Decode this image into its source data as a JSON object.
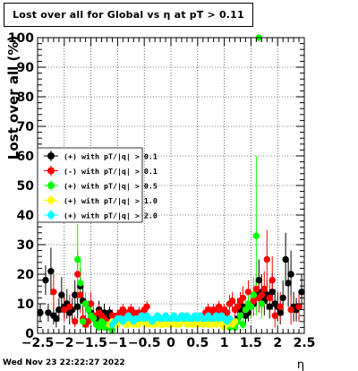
{
  "header": {
    "title": "Lost over all for Global vs  η at pT > 0.11"
  },
  "footer": {
    "timestamp": "Wed Nov 23 22:22:27 2022"
  },
  "chart_data": {
    "type": "scatter",
    "title": "Lost over all for Global vs  η at pT > 0.11",
    "xlabel": "η",
    "ylabel": "Lost over all (%)",
    "xlim": [
      -2.5,
      2.5
    ],
    "ylim": [
      0,
      100
    ],
    "x_ticks": [
      "−2.5",
      "−2",
      "−1.5",
      "−1",
      "−0.5",
      "0",
      "0.5",
      "1",
      "1.5",
      "2",
      "2.5"
    ],
    "y_ticks": [
      "0",
      "10",
      "20",
      "30",
      "40",
      "50",
      "60",
      "70",
      "80",
      "90",
      "100"
    ],
    "grid": true,
    "legend_position": "left",
    "series": [
      {
        "name": "(+) with pT/|q| > 0.1",
        "color": "#000000",
        "points": [
          [
            -2.45,
            7,
            3
          ],
          [
            -2.35,
            18,
            5
          ],
          [
            -2.3,
            7,
            3
          ],
          [
            -2.25,
            21,
            8
          ],
          [
            -2.2,
            6,
            3
          ],
          [
            -2.15,
            5,
            3
          ],
          [
            -2.1,
            8,
            4
          ],
          [
            -2.05,
            13,
            6
          ],
          [
            -2.0,
            9,
            4
          ],
          [
            -1.95,
            10,
            5
          ],
          [
            -1.9,
            7,
            4
          ],
          [
            -1.85,
            8,
            4
          ],
          [
            -1.8,
            13,
            5
          ],
          [
            -1.75,
            9,
            4
          ],
          [
            -1.7,
            16,
            6
          ],
          [
            -1.65,
            11,
            5
          ],
          [
            -1.6,
            4,
            2
          ],
          [
            -1.55,
            8,
            3
          ],
          [
            -1.5,
            7,
            3
          ],
          [
            -1.45,
            6,
            2
          ],
          [
            -1.4,
            5,
            2
          ],
          [
            -1.35,
            8,
            3
          ],
          [
            -1.3,
            6,
            2
          ],
          [
            -1.25,
            7,
            3
          ],
          [
            -1.2,
            5,
            2
          ],
          [
            -1.15,
            7,
            2
          ],
          [
            -1.1,
            6,
            2
          ],
          [
            1.25,
            5,
            2
          ],
          [
            1.3,
            8,
            3
          ],
          [
            1.35,
            9,
            3
          ],
          [
            1.4,
            6,
            3
          ],
          [
            1.45,
            7,
            3
          ],
          [
            1.5,
            9,
            4
          ],
          [
            1.55,
            10,
            4
          ],
          [
            1.6,
            13,
            5
          ],
          [
            1.65,
            18,
            7
          ],
          [
            1.7,
            14,
            6
          ],
          [
            1.75,
            11,
            5
          ],
          [
            1.8,
            13,
            5
          ],
          [
            1.85,
            9,
            4
          ],
          [
            1.9,
            14,
            6
          ],
          [
            1.95,
            10,
            5
          ],
          [
            2.0,
            9,
            5
          ],
          [
            2.05,
            7,
            4
          ],
          [
            2.1,
            12,
            6
          ],
          [
            2.15,
            25,
            9
          ],
          [
            2.2,
            17,
            8
          ],
          [
            2.25,
            20,
            8
          ],
          [
            2.3,
            9,
            5
          ],
          [
            2.35,
            8,
            4
          ],
          [
            2.4,
            9,
            5
          ],
          [
            2.45,
            14,
            6
          ]
        ]
      },
      {
        "name": "(-) with pT/|q| > 0.1",
        "color": "#ff0000",
        "points": [
          [
            -2.2,
            14,
            6
          ],
          [
            -2.0,
            8,
            4
          ],
          [
            -1.9,
            9,
            4
          ],
          [
            -1.8,
            4,
            2
          ],
          [
            -1.75,
            20,
            8
          ],
          [
            -1.7,
            13,
            6
          ],
          [
            -1.65,
            5,
            3
          ],
          [
            -1.6,
            3,
            2
          ],
          [
            -1.55,
            4,
            2
          ],
          [
            -1.5,
            10,
            4
          ],
          [
            -1.45,
            6,
            3
          ],
          [
            -1.4,
            3,
            2
          ],
          [
            -1.35,
            7,
            3
          ],
          [
            -1.3,
            6,
            3
          ],
          [
            -1.25,
            5,
            2
          ],
          [
            -1.2,
            4,
            2
          ],
          [
            -1.1,
            6,
            2
          ],
          [
            -1.05,
            5,
            2
          ],
          [
            -1.0,
            6,
            2
          ],
          [
            -0.95,
            7,
            2
          ],
          [
            -0.9,
            8,
            2
          ],
          [
            -0.85,
            6,
            2
          ],
          [
            -0.8,
            7,
            2
          ],
          [
            -0.75,
            8,
            2
          ],
          [
            -0.7,
            7,
            2
          ],
          [
            -0.65,
            6,
            2
          ],
          [
            -0.6,
            7,
            2
          ],
          [
            -0.5,
            8,
            2
          ],
          [
            -0.45,
            9,
            2
          ],
          [
            0.65,
            7,
            2
          ],
          [
            0.7,
            8,
            2
          ],
          [
            0.75,
            7,
            2
          ],
          [
            0.8,
            8,
            2
          ],
          [
            0.85,
            7,
            2
          ],
          [
            0.9,
            9,
            2
          ],
          [
            0.95,
            7,
            2
          ],
          [
            1.0,
            8,
            2
          ],
          [
            1.05,
            7,
            2
          ],
          [
            1.1,
            10,
            3
          ],
          [
            1.15,
            11,
            3
          ],
          [
            1.2,
            8,
            3
          ],
          [
            1.25,
            9,
            3
          ],
          [
            1.3,
            11,
            3
          ],
          [
            1.35,
            12,
            4
          ],
          [
            1.4,
            8,
            3
          ],
          [
            1.45,
            14,
            4
          ],
          [
            1.5,
            10,
            4
          ],
          [
            1.55,
            11,
            5
          ],
          [
            1.6,
            15,
            5
          ],
          [
            1.65,
            12,
            5
          ],
          [
            1.7,
            13,
            6
          ],
          [
            1.75,
            15,
            6
          ],
          [
            1.8,
            25,
            10
          ],
          [
            1.85,
            12,
            6
          ],
          [
            1.9,
            18,
            8
          ],
          [
            1.95,
            6,
            4
          ],
          [
            2.05,
            9,
            5
          ],
          [
            2.25,
            8,
            5
          ],
          [
            2.4,
            9,
            5
          ]
        ]
      },
      {
        "name": "(+) with pT/|q| > 0.5",
        "color": "#00ff00",
        "points": [
          [
            -1.75,
            25,
            12
          ],
          [
            -1.7,
            17,
            8
          ],
          [
            -1.65,
            4,
            2
          ],
          [
            -1.6,
            10,
            4
          ],
          [
            -1.55,
            8,
            3
          ],
          [
            -1.5,
            6,
            3
          ],
          [
            -1.45,
            5,
            2
          ],
          [
            -1.4,
            3,
            2
          ],
          [
            -1.35,
            2,
            1
          ],
          [
            -1.3,
            4,
            2
          ],
          [
            -1.25,
            2,
            1
          ],
          [
            -1.2,
            3,
            1
          ],
          [
            -1.15,
            2,
            1
          ],
          [
            -1.1,
            1,
            1
          ],
          [
            1.1,
            2,
            1
          ],
          [
            1.15,
            3,
            1
          ],
          [
            1.2,
            2,
            1
          ],
          [
            1.25,
            4,
            2
          ],
          [
            1.3,
            6,
            2
          ],
          [
            1.35,
            3,
            2
          ],
          [
            1.4,
            8,
            3
          ],
          [
            1.45,
            10,
            4
          ],
          [
            1.5,
            9,
            4
          ],
          [
            1.55,
            13,
            6
          ],
          [
            1.6,
            33,
            27
          ],
          [
            1.65,
            100,
            0
          ],
          [
            1.7,
            10,
            5
          ]
        ]
      },
      {
        "name": "(+) with pT/|q| > 1.0",
        "color": "#ffff00",
        "points": [
          [
            -1.15,
            3,
            1
          ],
          [
            -1.1,
            4,
            1
          ],
          [
            -1.05,
            3,
            1
          ],
          [
            -1.0,
            3,
            1
          ],
          [
            -0.95,
            4,
            1
          ],
          [
            -0.9,
            4,
            1
          ],
          [
            -0.85,
            3,
            1
          ],
          [
            -0.8,
            3,
            1
          ],
          [
            -0.75,
            4,
            1
          ],
          [
            -0.7,
            3,
            1
          ],
          [
            -0.65,
            3,
            1
          ],
          [
            -0.6,
            3,
            1
          ],
          [
            -0.55,
            4,
            1
          ],
          [
            -0.5,
            4,
            1
          ],
          [
            -0.45,
            3,
            1
          ],
          [
            -0.4,
            4,
            1
          ],
          [
            -0.35,
            3,
            1
          ],
          [
            -0.3,
            3,
            1
          ],
          [
            -0.25,
            4,
            1
          ],
          [
            -0.2,
            3,
            1
          ],
          [
            -0.15,
            3,
            1
          ],
          [
            -0.1,
            4,
            1
          ],
          [
            -0.05,
            3,
            1
          ],
          [
            0.0,
            3,
            1
          ],
          [
            0.05,
            4,
            1
          ],
          [
            0.1,
            3,
            1
          ],
          [
            0.15,
            3,
            1
          ],
          [
            0.2,
            4,
            1
          ],
          [
            0.25,
            4,
            1
          ],
          [
            0.3,
            3,
            1
          ],
          [
            0.35,
            4,
            1
          ],
          [
            0.4,
            3,
            1
          ],
          [
            0.45,
            4,
            1
          ],
          [
            0.5,
            3,
            1
          ],
          [
            0.55,
            4,
            1
          ],
          [
            0.6,
            3,
            1
          ],
          [
            0.65,
            4,
            1
          ],
          [
            0.7,
            3,
            1
          ],
          [
            0.75,
            3,
            1
          ],
          [
            0.8,
            4,
            1
          ],
          [
            0.85,
            3,
            1
          ],
          [
            0.9,
            4,
            1
          ],
          [
            0.95,
            3,
            1
          ],
          [
            1.0,
            2,
            1
          ],
          [
            1.05,
            3,
            1
          ],
          [
            1.1,
            4,
            1
          ],
          [
            1.15,
            3,
            1
          ],
          [
            1.2,
            4,
            1
          ]
        ]
      },
      {
        "name": "(+) with pT/|q| > 2.0",
        "color": "#00ffff",
        "points": [
          [
            -1.1,
            3,
            1
          ],
          [
            -1.05,
            4,
            1
          ],
          [
            -1.0,
            5,
            1
          ],
          [
            -0.95,
            5,
            1
          ],
          [
            -0.9,
            4,
            1
          ],
          [
            -0.85,
            5,
            1
          ],
          [
            -0.8,
            6,
            1
          ],
          [
            -0.75,
            5,
            1
          ],
          [
            -0.7,
            4,
            1
          ],
          [
            -0.65,
            5,
            1
          ],
          [
            -0.6,
            5,
            1
          ],
          [
            -0.55,
            6,
            1
          ],
          [
            -0.5,
            5,
            1
          ],
          [
            -0.45,
            6,
            1
          ],
          [
            -0.4,
            5,
            1
          ],
          [
            -0.35,
            4,
            1
          ],
          [
            -0.3,
            5,
            1
          ],
          [
            -0.25,
            6,
            1
          ],
          [
            -0.2,
            5,
            1
          ],
          [
            -0.15,
            5,
            1
          ],
          [
            -0.1,
            6,
            1
          ],
          [
            -0.05,
            5,
            1
          ],
          [
            0.0,
            5,
            1
          ],
          [
            0.05,
            6,
            1
          ],
          [
            0.1,
            5,
            1
          ],
          [
            0.15,
            5,
            1
          ],
          [
            0.2,
            6,
            1
          ],
          [
            0.25,
            5,
            1
          ],
          [
            0.3,
            6,
            1
          ],
          [
            0.35,
            5,
            1
          ],
          [
            0.4,
            5,
            1
          ],
          [
            0.45,
            6,
            1
          ],
          [
            0.5,
            5,
            1
          ],
          [
            0.55,
            6,
            1
          ],
          [
            0.6,
            5,
            1
          ],
          [
            0.65,
            5,
            1
          ],
          [
            0.7,
            6,
            1
          ],
          [
            0.75,
            5,
            1
          ],
          [
            0.8,
            5,
            1
          ],
          [
            0.85,
            6,
            1
          ],
          [
            0.9,
            5,
            1
          ],
          [
            0.95,
            6,
            1
          ],
          [
            1.0,
            5,
            1
          ],
          [
            1.05,
            4,
            1
          ],
          [
            1.1,
            5,
            1
          ]
        ]
      }
    ]
  }
}
